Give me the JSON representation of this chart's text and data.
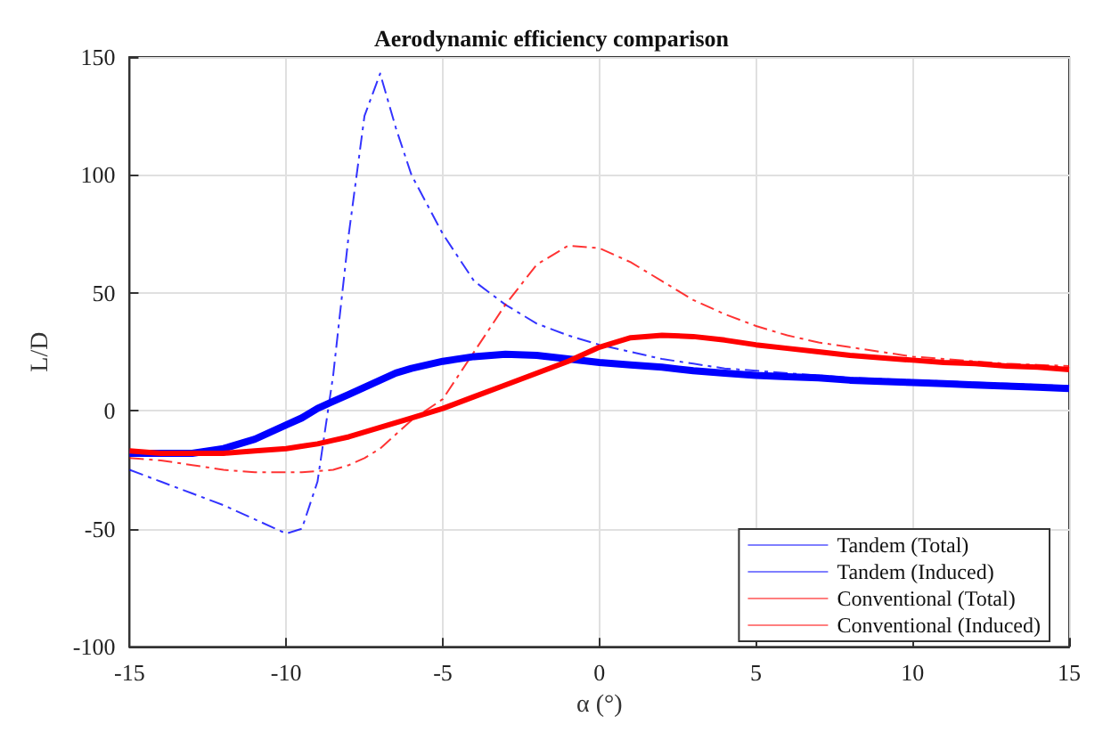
{
  "chart_data": {
    "type": "line",
    "title": "Aerodynamic efficiency comparison",
    "xlabel": "α (°)",
    "ylabel": "L/D",
    "x": [
      -15,
      -14,
      -13,
      -12,
      -11,
      -10,
      -9.5,
      -9,
      -8.5,
      -8,
      -7.5,
      -7,
      -6.5,
      -6,
      -5,
      -4,
      -3,
      -2,
      -1,
      0,
      1,
      2,
      3,
      4,
      5,
      6,
      7,
      8,
      9,
      10,
      11,
      12,
      13,
      14,
      15
    ],
    "series": [
      {
        "name": "Tandem (Total)",
        "color": "#0000ff",
        "line_style": "solid",
        "values": [
          -18,
          -18,
          -18,
          -16,
          -12,
          -6,
          -3,
          1,
          4,
          7,
          10,
          13,
          16,
          18,
          21,
          23,
          24,
          23.5,
          22,
          20.5,
          19.5,
          18.5,
          17,
          16,
          15,
          14.5,
          14,
          13,
          12.5,
          12,
          11.5,
          11,
          10.5,
          10,
          9.5
        ]
      },
      {
        "name": "Tandem (Induced)",
        "color": "#0000ff",
        "line_style": "dashed",
        "values": [
          -25,
          -30,
          -35,
          -40,
          -46,
          -52,
          -50,
          -30,
          15,
          75,
          125,
          143,
          120,
          100,
          75,
          55,
          45,
          37,
          32,
          28,
          25,
          22,
          20,
          18,
          17,
          16,
          15,
          14,
          13.5,
          13,
          12.5,
          12,
          11.5,
          11,
          10.5
        ]
      },
      {
        "name": "Conventional (Total)",
        "color": "#ff0000",
        "line_style": "solid",
        "values": [
          -17,
          -18,
          -18,
          -18,
          -17,
          -16,
          -15,
          -14,
          -12.5,
          -11,
          -9,
          -7,
          -5,
          -3,
          1,
          6,
          11,
          16,
          21,
          27,
          31,
          32,
          31.5,
          30,
          28,
          26.5,
          25,
          23.5,
          22.5,
          21.5,
          20.5,
          20,
          19,
          18.5,
          17.5
        ]
      },
      {
        "name": "Conventional (Induced)",
        "color": "#ff0000",
        "line_style": "dashed",
        "values": [
          -20,
          -21,
          -23,
          -25,
          -26,
          -26,
          -26,
          -25.5,
          -25,
          -23,
          -20,
          -16,
          -10,
          -4,
          5,
          25,
          45,
          62,
          70,
          69,
          63,
          55,
          47,
          41,
          36,
          32,
          29,
          27,
          25,
          23,
          22,
          21,
          20,
          19.5,
          19
        ]
      }
    ],
    "xlim": [
      -15,
      15
    ],
    "xticks": [
      -15,
      -10,
      -5,
      0,
      5,
      10,
      15
    ],
    "ylim": [
      -100,
      150
    ],
    "yticks": [
      -100,
      -50,
      0,
      50,
      100,
      150
    ],
    "grid": true,
    "legend": "bottom right",
    "marker": "none"
  }
}
